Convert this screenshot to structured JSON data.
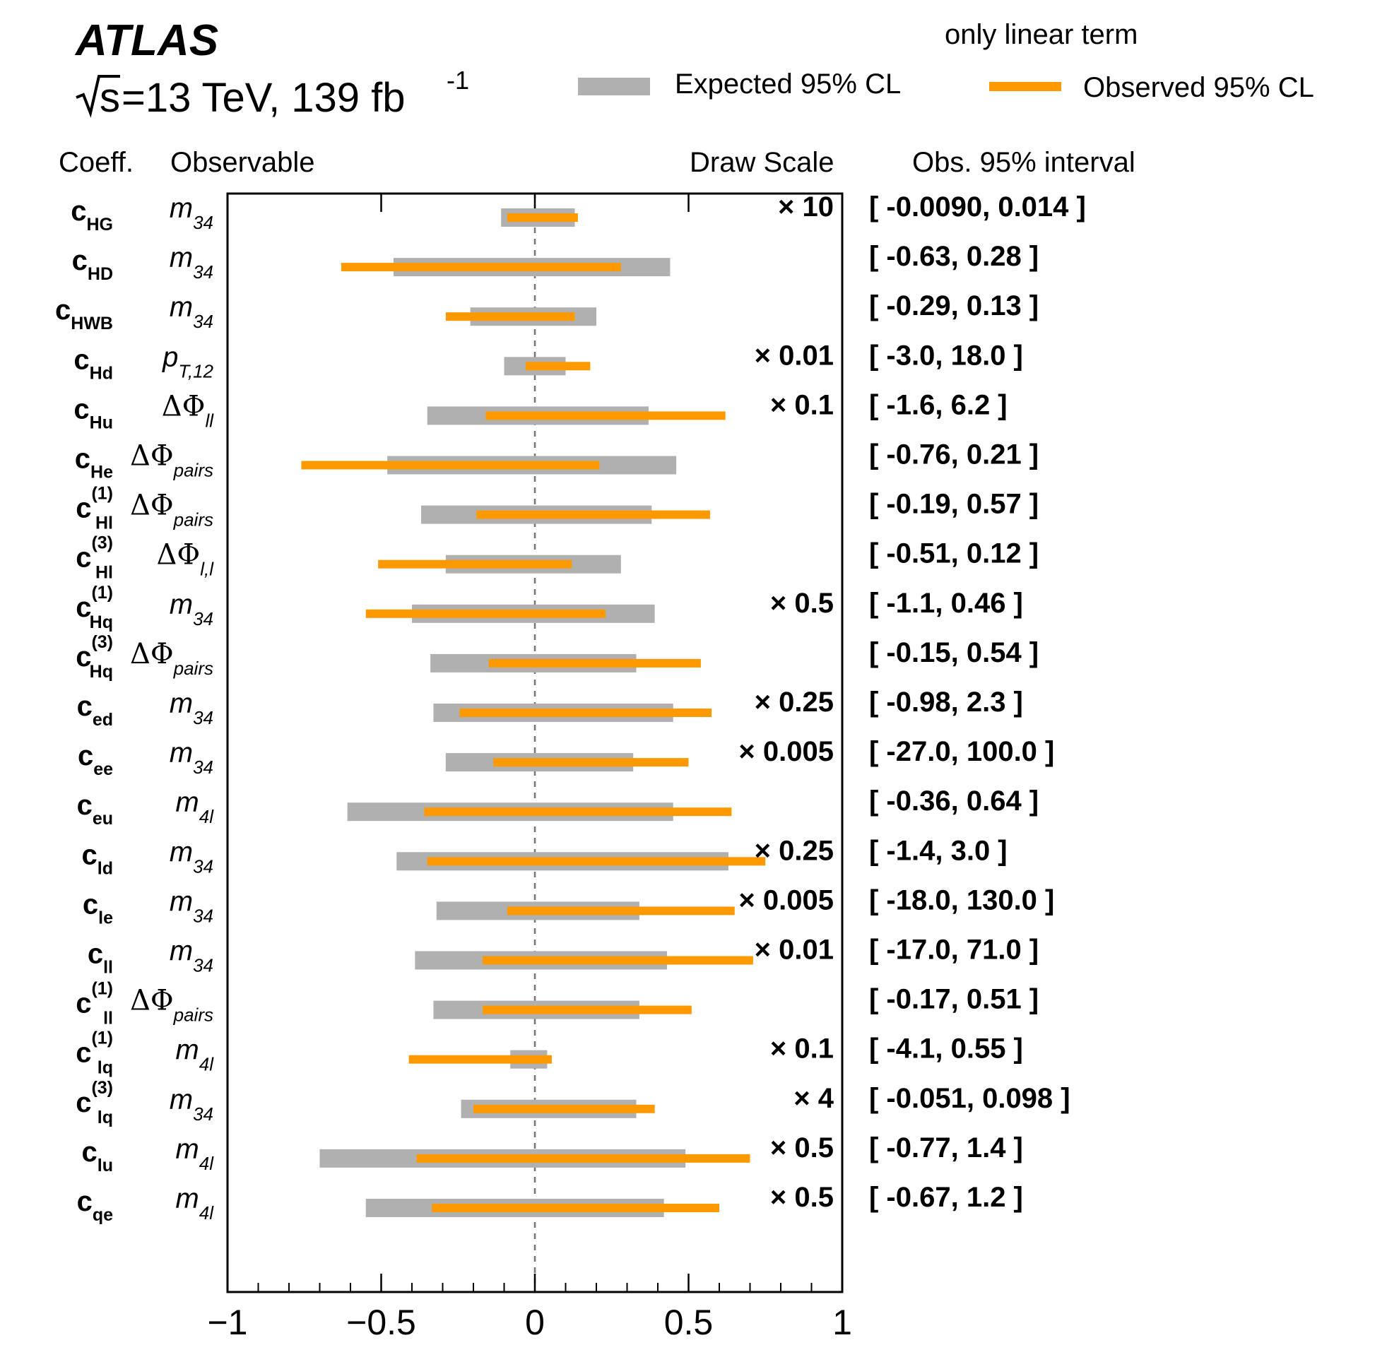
{
  "header": {
    "experiment": "ATLAS",
    "energy_prefix": "s",
    "energy_rest": "=13 TeV, 139 fb",
    "lumi_exp": "-1"
  },
  "legend": {
    "title": "only linear term",
    "expected_label": "Expected 95% CL",
    "observed_label": "Observed 95% CL",
    "expected_color": "#b0b0b0",
    "observed_color": "#ff9900"
  },
  "columns": {
    "coeff": "Coeff.",
    "observable": "Observable",
    "draw_scale": "Draw Scale",
    "interval": "Obs. 95% interval"
  },
  "chart_data": {
    "type": "bar",
    "orientation": "horizontal-interval",
    "x_ticks": [
      -1,
      -0.5,
      0,
      0.5,
      1
    ],
    "x_tick_labels": [
      "−1",
      "−0.5",
      "0",
      "0.5",
      "1"
    ],
    "xlim": [
      -1,
      1
    ],
    "reference_line": 0,
    "rows": [
      {
        "coeff": "c",
        "sub": "HG",
        "sup": "",
        "obs_main": "m",
        "obs_sub": "34",
        "obs_greek": false,
        "scale": "× 10",
        "interval": "[ -0.0090, 0.014 ]",
        "expected": [
          -0.11,
          0.13
        ],
        "observed": [
          -0.09,
          0.14
        ]
      },
      {
        "coeff": "c",
        "sub": "HD",
        "sup": "",
        "obs_main": "m",
        "obs_sub": "34",
        "obs_greek": false,
        "scale": "",
        "interval": "[ -0.63, 0.28 ]",
        "expected": [
          -0.46,
          0.44
        ],
        "observed": [
          -0.63,
          0.28
        ]
      },
      {
        "coeff": "c",
        "sub": "HWB",
        "sup": "",
        "obs_main": "m",
        "obs_sub": "34",
        "obs_greek": false,
        "scale": "",
        "interval": "[ -0.29, 0.13 ]",
        "expected": [
          -0.21,
          0.2
        ],
        "observed": [
          -0.29,
          0.13
        ]
      },
      {
        "coeff": "c",
        "sub": "Hd",
        "sup": "",
        "obs_main": "p",
        "obs_sub": "T,12",
        "obs_greek": false,
        "scale": "× 0.01",
        "interval": "[ -3.0, 18.0 ]",
        "expected": [
          -0.1,
          0.1
        ],
        "observed": [
          -0.03,
          0.18
        ]
      },
      {
        "coeff": "c",
        "sub": "Hu",
        "sup": "",
        "obs_main": "ΔΦ",
        "obs_sub": "ll",
        "obs_greek": true,
        "scale": "× 0.1",
        "interval": "[ -1.6, 6.2 ]",
        "expected": [
          -0.35,
          0.37
        ],
        "observed": [
          -0.16,
          0.62
        ]
      },
      {
        "coeff": "c",
        "sub": "He",
        "sup": "",
        "obs_main": "ΔΦ",
        "obs_sub": "pairs",
        "obs_greek": true,
        "scale": "",
        "interval": "[ -0.76, 0.21 ]",
        "expected": [
          -0.48,
          0.46
        ],
        "observed": [
          -0.76,
          0.21
        ]
      },
      {
        "coeff": "c",
        "sub": "Hl",
        "sup": "(1)",
        "obs_main": "ΔΦ",
        "obs_sub": "pairs",
        "obs_greek": true,
        "scale": "",
        "interval": "[ -0.19, 0.57 ]",
        "expected": [
          -0.37,
          0.38
        ],
        "observed": [
          -0.19,
          0.57
        ]
      },
      {
        "coeff": "c",
        "sub": "Hl",
        "sup": "(3)",
        "obs_main": "ΔΦ",
        "obs_sub": "l,l",
        "obs_greek": true,
        "scale": "",
        "interval": "[ -0.51, 0.12 ]",
        "expected": [
          -0.29,
          0.28
        ],
        "observed": [
          -0.51,
          0.12
        ]
      },
      {
        "coeff": "c",
        "sub": "Hq",
        "sup": "(1)",
        "obs_main": "m",
        "obs_sub": "34",
        "obs_greek": false,
        "scale": "× 0.5",
        "interval": "[ -1.1, 0.46 ]",
        "expected": [
          -0.4,
          0.39
        ],
        "observed": [
          -0.55,
          0.23
        ]
      },
      {
        "coeff": "c",
        "sub": "Hq",
        "sup": "(3)",
        "obs_main": "ΔΦ",
        "obs_sub": "pairs",
        "obs_greek": true,
        "scale": "",
        "interval": "[ -0.15, 0.54 ]",
        "expected": [
          -0.34,
          0.33
        ],
        "observed": [
          -0.15,
          0.54
        ]
      },
      {
        "coeff": "c",
        "sub": "ed",
        "sup": "",
        "obs_main": "m",
        "obs_sub": "34",
        "obs_greek": false,
        "scale": "× 0.25",
        "interval": "[ -0.98, 2.3 ]",
        "expected": [
          -0.33,
          0.45
        ],
        "observed": [
          -0.245,
          0.575
        ]
      },
      {
        "coeff": "c",
        "sub": "ee",
        "sup": "",
        "obs_main": "m",
        "obs_sub": "34",
        "obs_greek": false,
        "scale": "× 0.005",
        "interval": "[ -27.0, 100.0 ]",
        "expected": [
          -0.29,
          0.32
        ],
        "observed": [
          -0.135,
          0.5
        ]
      },
      {
        "coeff": "c",
        "sub": "eu",
        "sup": "",
        "obs_main": "m",
        "obs_sub": "4l",
        "obs_greek": false,
        "scale": "",
        "interval": "[ -0.36, 0.64 ]",
        "expected": [
          -0.61,
          0.45
        ],
        "observed": [
          -0.36,
          0.64
        ]
      },
      {
        "coeff": "c",
        "sub": "ld",
        "sup": "",
        "obs_main": "m",
        "obs_sub": "34",
        "obs_greek": false,
        "scale": "× 0.25",
        "interval": "[ -1.4, 3.0 ]",
        "expected": [
          -0.45,
          0.63
        ],
        "observed": [
          -0.35,
          0.75
        ]
      },
      {
        "coeff": "c",
        "sub": "le",
        "sup": "",
        "obs_main": "m",
        "obs_sub": "34",
        "obs_greek": false,
        "scale": "× 0.005",
        "interval": "[ -18.0, 130.0 ]",
        "expected": [
          -0.32,
          0.34
        ],
        "observed": [
          -0.09,
          0.65
        ]
      },
      {
        "coeff": "c",
        "sub": "ll",
        "sup": "",
        "obs_main": "m",
        "obs_sub": "34",
        "obs_greek": false,
        "scale": "× 0.01",
        "interval": "[ -17.0, 71.0 ]",
        "expected": [
          -0.39,
          0.43
        ],
        "observed": [
          -0.17,
          0.71
        ]
      },
      {
        "coeff": "c",
        "sub": "ll",
        "sup": "(1)",
        "obs_main": "ΔΦ",
        "obs_sub": "pairs",
        "obs_greek": true,
        "scale": "",
        "interval": "[ -0.17, 0.51 ]",
        "expected": [
          -0.33,
          0.34
        ],
        "observed": [
          -0.17,
          0.51
        ]
      },
      {
        "coeff": "c",
        "sub": "lq",
        "sup": "(1)",
        "obs_main": "m",
        "obs_sub": "4l",
        "obs_greek": false,
        "scale": "× 0.1",
        "interval": "[ -4.1, 0.55 ]",
        "expected": [
          -0.08,
          0.04
        ],
        "observed": [
          -0.41,
          0.055
        ]
      },
      {
        "coeff": "c",
        "sub": "lq",
        "sup": "(3)",
        "obs_main": "m",
        "obs_sub": "34",
        "obs_greek": false,
        "scale": "× 4",
        "interval": "[ -0.051, 0.098 ]",
        "expected": [
          -0.24,
          0.33
        ],
        "observed": [
          -0.2,
          0.39
        ]
      },
      {
        "coeff": "c",
        "sub": "lu",
        "sup": "",
        "obs_main": "m",
        "obs_sub": "4l",
        "obs_greek": false,
        "scale": "× 0.5",
        "interval": "[ -0.77, 1.4 ]",
        "expected": [
          -0.7,
          0.49
        ],
        "observed": [
          -0.385,
          0.7
        ]
      },
      {
        "coeff": "c",
        "sub": "qe",
        "sup": "",
        "obs_main": "m",
        "obs_sub": "4l",
        "obs_greek": false,
        "scale": "× 0.5",
        "interval": "[ -0.67, 1.2 ]",
        "expected": [
          -0.55,
          0.42
        ],
        "observed": [
          -0.335,
          0.6
        ]
      }
    ]
  }
}
